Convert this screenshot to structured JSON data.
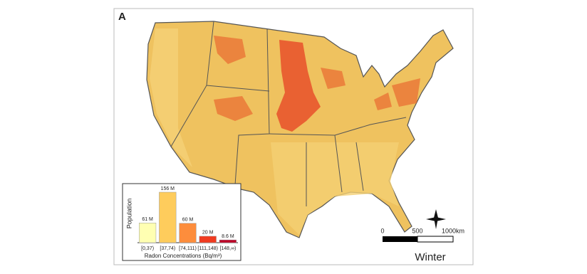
{
  "panel_label": "A",
  "season": "Winter",
  "scale_bar": {
    "labels": [
      "0",
      "500",
      "1000km"
    ]
  },
  "chart_data": {
    "type": "bar",
    "categories": [
      "[0,37)",
      "[37,74)",
      "[74,111)",
      "[111,148)",
      "[148,∞)"
    ],
    "values": [
      61,
      156,
      60,
      20,
      8.6
    ],
    "value_labels": [
      "61 M",
      "156 M",
      "60 M",
      "20 M",
      "8.6 M"
    ],
    "colors": [
      "#ffffb2",
      "#fecc5c",
      "#fd8d3c",
      "#f03b20",
      "#bd0026"
    ],
    "ylabel": "Population",
    "xlabel": "Radon Concentrations (Bq/m³)"
  }
}
